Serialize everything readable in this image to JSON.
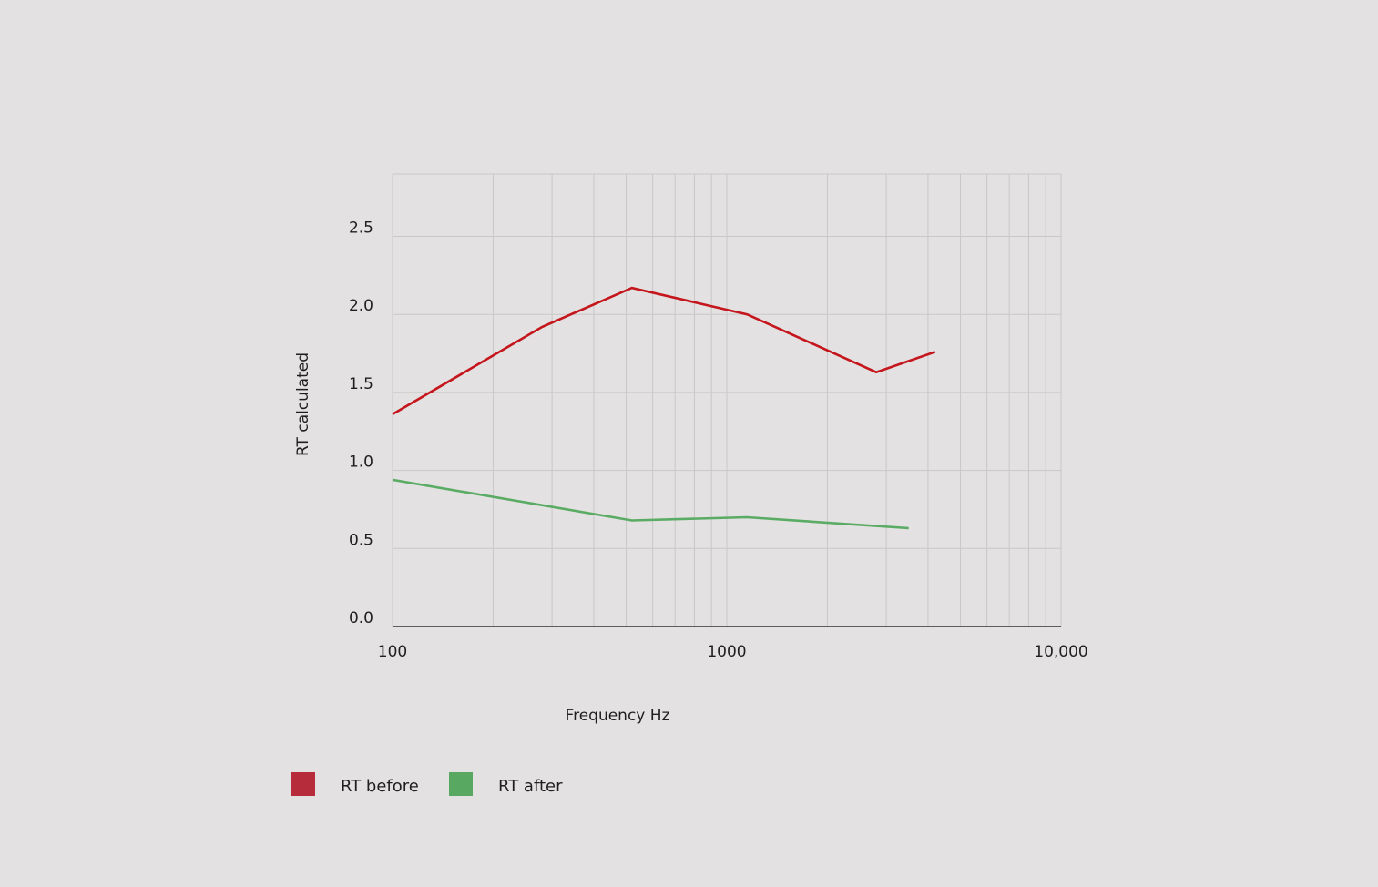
{
  "chart_data": {
    "type": "line",
    "xscale": "log",
    "xlim": [
      100,
      10000
    ],
    "xticks": [
      100,
      1000,
      10000
    ],
    "xtick_labels": [
      "100",
      "1000",
      "10,000"
    ],
    "ylim": [
      0,
      2.9
    ],
    "yticks": [
      0.0,
      0.5,
      1.0,
      1.5,
      2.0,
      2.5
    ],
    "ytick_labels": [
      "0.0",
      "0.5",
      "1.0",
      "1.5",
      "2.0",
      "2.5"
    ],
    "xlabel": "Frequency Hz",
    "ylabel": "RT calculated",
    "grid": true,
    "legend_position": "bottom-left",
    "series": [
      {
        "name": "RT before",
        "color": "#c4161c",
        "legend_color": "#b72c3a",
        "x": [
          100,
          280,
          520,
          1150,
          2800,
          4200
        ],
        "y": [
          1.36,
          1.92,
          2.17,
          2.0,
          1.63,
          1.76
        ]
      },
      {
        "name": "RT after",
        "color": "#5aab64",
        "legend_color": "#58a862",
        "x": [
          100,
          520,
          1150,
          3500
        ],
        "y": [
          0.94,
          0.68,
          0.7,
          0.63
        ]
      }
    ]
  }
}
